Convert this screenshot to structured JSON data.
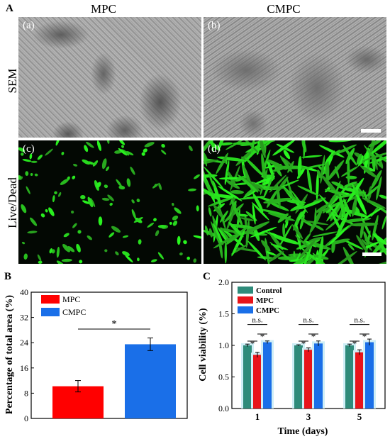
{
  "panel_a": {
    "letter": "A",
    "col_titles": [
      "MPC",
      "CMPC"
    ],
    "row_labels": [
      "SEM",
      "Live/Dead"
    ],
    "sub_labels": [
      "(a)",
      "(b)",
      "(c)",
      "(d)"
    ]
  },
  "chart_data": [
    {
      "type": "bar",
      "panel_letter": "B",
      "categories": [
        "MPC",
        "CMPC"
      ],
      "series": [
        {
          "name": "MPC",
          "color": "#ff0000",
          "values": [
            10.2,
            null
          ]
        },
        {
          "name": "CMPC",
          "color": "#1a6fe8",
          "values": [
            null,
            23.5
          ]
        }
      ],
      "values": [
        10.2,
        23.5
      ],
      "errors": [
        1.8,
        2.0
      ],
      "ylabel": "Percentage of total area (%)",
      "xlabel": "",
      "ylim": [
        0,
        40
      ],
      "yticks": [
        "0",
        "8",
        "16",
        "24",
        "32",
        "40"
      ],
      "significance": [
        {
          "between": [
            "MPC",
            "CMPC"
          ],
          "label": "*"
        }
      ],
      "legend": "top-left",
      "grid": false
    },
    {
      "type": "bar",
      "panel_letter": "C",
      "categories": [
        "1",
        "3",
        "5"
      ],
      "series": [
        {
          "name": "Control",
          "color": "#2e8b7a",
          "values": [
            1.0,
            1.0,
            1.0
          ],
          "errors": [
            0.02,
            0.01,
            0.02
          ]
        },
        {
          "name": "MPC",
          "color": "#e8141a",
          "values": [
            0.85,
            0.93,
            0.89
          ],
          "errors": [
            0.04,
            0.03,
            0.04
          ]
        },
        {
          "name": "CMPC",
          "color": "#1a6fe8",
          "values": [
            1.05,
            1.03,
            1.05
          ],
          "errors": [
            0.02,
            0.04,
            0.05
          ]
        }
      ],
      "xlabel": "Time (days)",
      "ylabel": "Cell viability (%)",
      "ylim": [
        0.0,
        2.0
      ],
      "yticks": [
        "0.0",
        "0.5",
        "1.0",
        "1.5",
        "2.0"
      ],
      "significance_labels": {
        "top": "n.s.",
        "pair": "*"
      },
      "legend": "top-left",
      "grid": false
    }
  ]
}
